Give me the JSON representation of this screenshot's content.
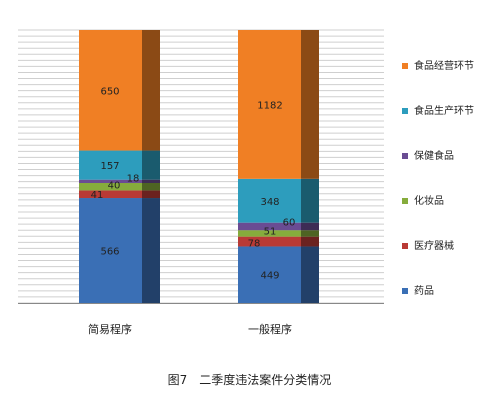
{
  "chart_data": {
    "type": "bar",
    "stacked": true,
    "percent_stacked": true,
    "title": "",
    "caption": "图7　二季度违法案件分类情况",
    "categories": [
      "简易程序",
      "一般程序"
    ],
    "series": [
      {
        "name": "药品",
        "values": [
          566,
          449
        ],
        "color": "#3a6fb5"
      },
      {
        "name": "医疗器械",
        "values": [
          41,
          78
        ],
        "color": "#b93a35"
      },
      {
        "name": "化妆品",
        "values": [
          40,
          51
        ],
        "color": "#86ac3c"
      },
      {
        "name": "保健食品",
        "values": [
          18,
          60
        ],
        "color": "#6a4c93"
      },
      {
        "name": "食品生产环节",
        "values": [
          157,
          348
        ],
        "color": "#2d9dbd"
      },
      {
        "name": "食品经营环节",
        "values": [
          650,
          1182
        ],
        "color": "#f07f24"
      }
    ],
    "legend_position": "right",
    "grid": true
  }
}
